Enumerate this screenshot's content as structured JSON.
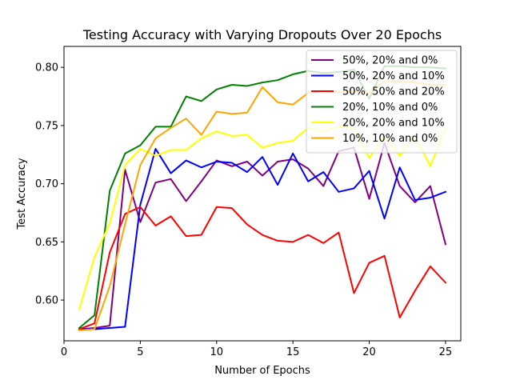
{
  "chart_data": {
    "type": "line",
    "title": "Testing Accuracy with Varying Dropouts Over 20 Epochs",
    "xlabel": "Number of Epochs",
    "ylabel": "Test Accuracy",
    "xlim": [
      0,
      26
    ],
    "ylim": [
      0.565,
      0.818
    ],
    "xticks": [
      0,
      5,
      10,
      15,
      20,
      25
    ],
    "yticks": [
      0.6,
      0.65,
      0.7,
      0.75,
      0.8
    ],
    "ytick_labels": [
      "0.60",
      "0.65",
      "0.70",
      "0.75",
      "0.80"
    ],
    "grid": false,
    "legend_position": "top-right",
    "x": [
      1,
      2,
      3,
      4,
      5,
      6,
      7,
      8,
      9,
      10,
      11,
      12,
      13,
      14,
      15,
      16,
      17,
      18,
      19,
      20,
      21,
      22,
      23,
      24,
      25
    ],
    "series": [
      {
        "name": "50%, 20% and 0%",
        "color": "#800080",
        "values": [
          0.575,
          0.576,
          0.578,
          0.712,
          0.667,
          0.701,
          0.704,
          0.685,
          0.702,
          0.72,
          0.715,
          0.719,
          0.707,
          0.719,
          0.721,
          0.713,
          0.698,
          0.728,
          0.731,
          0.687,
          0.735,
          0.698,
          0.684,
          0.698,
          0.648
        ]
      },
      {
        "name": "50%, 20% and 10%",
        "color": "#0000ff",
        "values": [
          0.575,
          0.575,
          0.576,
          0.577,
          0.682,
          0.73,
          0.709,
          0.72,
          0.714,
          0.719,
          0.718,
          0.71,
          0.723,
          0.699,
          0.726,
          0.702,
          0.71,
          0.693,
          0.696,
          0.711,
          0.67,
          0.714,
          0.686,
          0.688,
          0.693
        ]
      },
      {
        "name": "50%, 50% and 20%",
        "color": "#ff0000",
        "values": [
          0.575,
          0.58,
          0.641,
          0.674,
          0.68,
          0.664,
          0.672,
          0.655,
          0.656,
          0.68,
          0.679,
          0.665,
          0.656,
          0.651,
          0.65,
          0.656,
          0.649,
          0.658,
          0.606,
          0.632,
          0.638,
          0.585,
          0.608,
          0.629,
          0.615
        ]
      },
      {
        "name": "20%, 10% and 0%",
        "color": "#008000",
        "values": [
          0.576,
          0.587,
          0.694,
          0.726,
          0.733,
          0.749,
          0.749,
          0.775,
          0.771,
          0.781,
          0.785,
          0.784,
          0.787,
          0.789,
          0.794,
          0.797,
          0.795,
          0.796,
          0.798,
          0.773,
          0.801,
          0.801,
          0.8,
          0.8,
          0.799
        ]
      },
      {
        "name": "20%, 20% and 10%",
        "color": "#ffff00",
        "values": [
          0.592,
          0.637,
          0.666,
          0.716,
          0.73,
          0.724,
          0.729,
          0.729,
          0.739,
          0.745,
          0.741,
          0.742,
          0.731,
          0.735,
          0.737,
          0.748,
          0.745,
          0.749,
          0.748,
          0.722,
          0.741,
          0.724,
          0.741,
          0.715,
          0.748
        ]
      },
      {
        "name": "10%, 10% and 0%",
        "color": "#ffa500",
        "values": [
          0.574,
          0.575,
          0.612,
          0.665,
          0.716,
          0.739,
          0.748,
          0.756,
          0.742,
          0.762,
          0.76,
          0.761,
          0.783,
          0.77,
          0.768,
          0.778,
          0.78,
          0.779,
          0.779,
          0.778,
          0.788,
          0.788,
          0.787,
          0.785,
          0.785
        ]
      }
    ]
  }
}
